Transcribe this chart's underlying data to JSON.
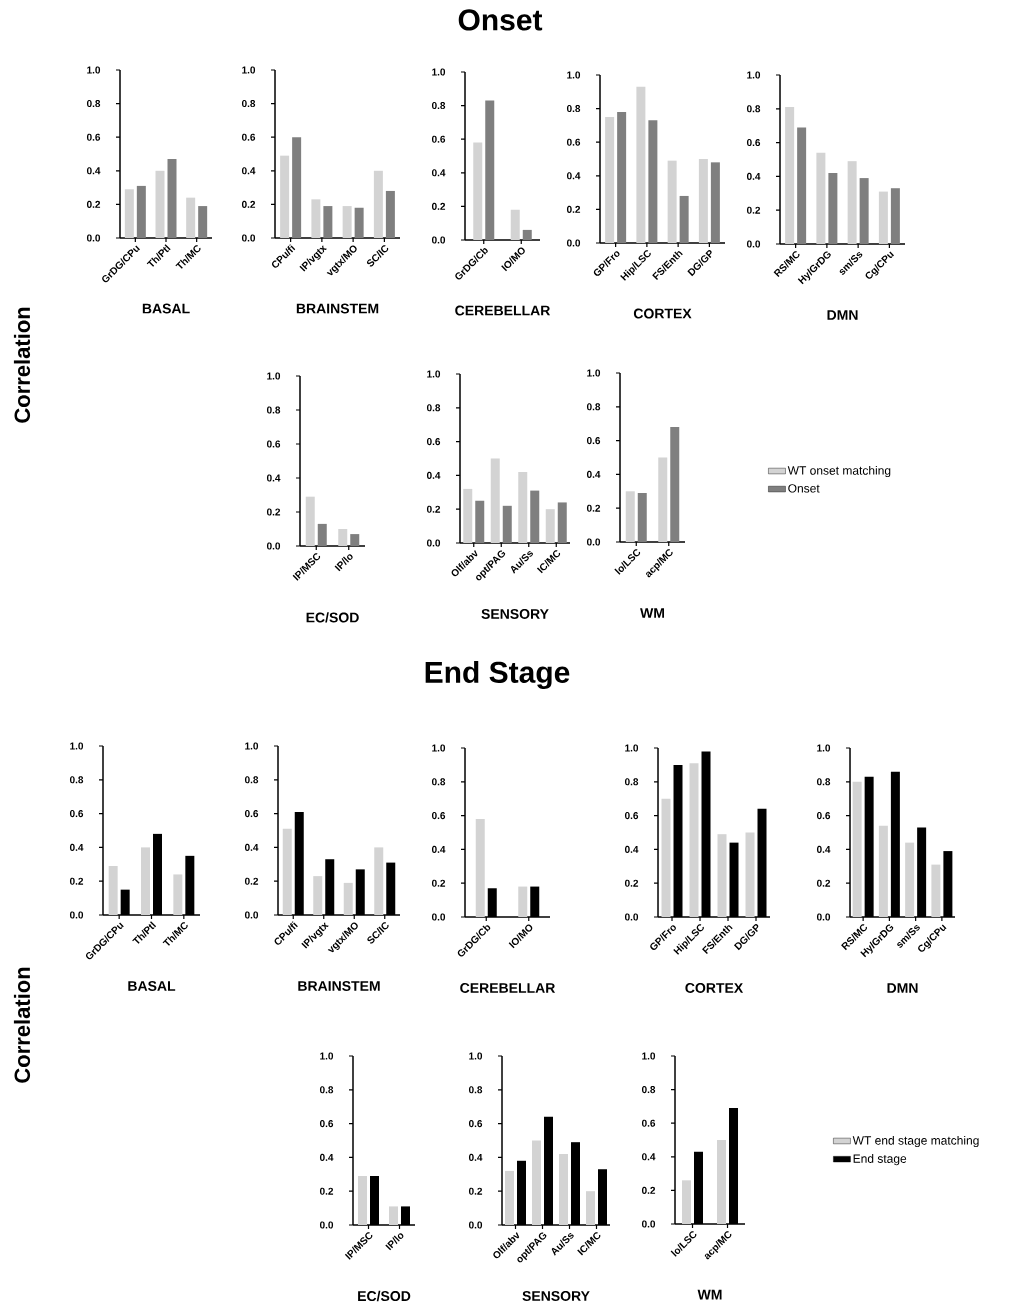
{
  "chart_data": [
    {
      "type": "other",
      "title": "Onset",
      "ylabel": "Correlation"
    },
    {
      "type": "bar",
      "xlabel": "BASAL",
      "categories": [
        "GrDG/CPu",
        "Th/Ptl",
        "Th/MC"
      ],
      "ylim": [
        0,
        1
      ],
      "yticks": [
        {
          "value": 0,
          "label": "0.0"
        },
        {
          "value": 0.2,
          "label": "0.2"
        },
        {
          "value": 0.4,
          "label": "0.4"
        },
        {
          "value": 0.6,
          "label": "0.6"
        },
        {
          "value": 0.8,
          "label": "0.8"
        },
        {
          "value": 1,
          "label": "1.0"
        }
      ],
      "series": [
        {
          "color": "#d3d3d3",
          "values": [
            0.29,
            0.4,
            0.24
          ]
        },
        {
          "color": "#7f7f7f",
          "values": [
            0.31,
            0.47,
            0.19
          ]
        }
      ]
    },
    {
      "type": "bar",
      "xlabel": "BRAINSTEM",
      "categories": [
        "CPu/fi",
        "IP/vgtx",
        "vgtx/MO",
        "SC/IC"
      ],
      "ylim": [
        0,
        1
      ],
      "yticks": [
        {
          "value": 0,
          "label": "0.0"
        },
        {
          "value": 0.2,
          "label": "0.2"
        },
        {
          "value": 0.4,
          "label": "0.4"
        },
        {
          "value": 0.6,
          "label": "0.6"
        },
        {
          "value": 0.8,
          "label": "0.8"
        },
        {
          "value": 1,
          "label": "1.0"
        }
      ],
      "series": [
        {
          "color": "#d3d3d3",
          "values": [
            0.49,
            0.23,
            0.19,
            0.4
          ]
        },
        {
          "color": "#7f7f7f",
          "values": [
            0.6,
            0.19,
            0.18,
            0.28
          ]
        }
      ]
    },
    {
      "type": "bar",
      "xlabel": "CEREBELLAR",
      "categories": [
        "GrDG/Cb",
        "IO/MO"
      ],
      "ylim": [
        0,
        1
      ],
      "yticks": [
        {
          "value": 0,
          "label": "0.0"
        },
        {
          "value": 0.2,
          "label": "0.2"
        },
        {
          "value": 0.4,
          "label": "0.4"
        },
        {
          "value": 0.6,
          "label": "0.6"
        },
        {
          "value": 0.8,
          "label": "0.8"
        },
        {
          "value": 1,
          "label": "1.0"
        }
      ],
      "series": [
        {
          "color": "#d3d3d3",
          "values": [
            0.58,
            0.18
          ]
        },
        {
          "color": "#7f7f7f",
          "values": [
            0.83,
            0.06
          ]
        }
      ]
    },
    {
      "type": "bar",
      "xlabel": "CORTEX",
      "categories": [
        "GP/Fro",
        "Hip/LSC",
        "FS/Enth",
        "DG/GP"
      ],
      "ylim": [
        0,
        1
      ],
      "yticks": [
        {
          "value": 0,
          "label": "0.0"
        },
        {
          "value": 0.2,
          "label": "0.2"
        },
        {
          "value": 0.4,
          "label": "0.4"
        },
        {
          "value": 0.6,
          "label": "0.6"
        },
        {
          "value": 0.8,
          "label": "0.8"
        },
        {
          "value": 1,
          "label": "1.0"
        }
      ],
      "series": [
        {
          "color": "#d3d3d3",
          "values": [
            0.75,
            0.93,
            0.49,
            0.5
          ]
        },
        {
          "color": "#7f7f7f",
          "values": [
            0.78,
            0.73,
            0.28,
            0.48
          ]
        }
      ]
    },
    {
      "type": "bar",
      "xlabel": "DMN",
      "categories": [
        "RS/MC",
        "Hy/GrDG",
        "sm/Ss",
        "Cg/CPu"
      ],
      "ylim": [
        0,
        1
      ],
      "yticks": [
        {
          "value": 0,
          "label": "0.0"
        },
        {
          "value": 0.2,
          "label": "0.2"
        },
        {
          "value": 0.4,
          "label": "0.4"
        },
        {
          "value": 0.6,
          "label": "0.6"
        },
        {
          "value": 0.8,
          "label": "0.8"
        },
        {
          "value": 1,
          "label": "1.0"
        }
      ],
      "series": [
        {
          "color": "#d3d3d3",
          "values": [
            0.81,
            0.54,
            0.49,
            0.31
          ]
        },
        {
          "color": "#7f7f7f",
          "values": [
            0.69,
            0.42,
            0.39,
            0.33
          ]
        }
      ]
    },
    {
      "type": "bar",
      "xlabel": "EC/SOD",
      "categories": [
        "IP/MSC",
        "IP/lo"
      ],
      "ylim": [
        0,
        1
      ],
      "yticks": [
        {
          "value": 0,
          "label": "0.0"
        },
        {
          "value": 0.2,
          "label": "0.2"
        },
        {
          "value": 0.4,
          "label": "0.4"
        },
        {
          "value": 0.6,
          "label": "0.6"
        },
        {
          "value": 0.8,
          "label": "0.8"
        },
        {
          "value": 1,
          "label": "1.0"
        }
      ],
      "series": [
        {
          "color": "#d3d3d3",
          "values": [
            0.29,
            0.1
          ]
        },
        {
          "color": "#7f7f7f",
          "values": [
            0.13,
            0.07
          ]
        }
      ]
    },
    {
      "type": "bar",
      "xlabel": "SENSORY",
      "categories": [
        "Olf/abv",
        "opt/PAG",
        "Au/Ss",
        "IC/MC"
      ],
      "ylim": [
        0,
        1
      ],
      "yticks": [
        {
          "value": 0,
          "label": "0.0"
        },
        {
          "value": 0.2,
          "label": "0.2"
        },
        {
          "value": 0.4,
          "label": "0.4"
        },
        {
          "value": 0.6,
          "label": "0.6"
        },
        {
          "value": 0.8,
          "label": "0.8"
        },
        {
          "value": 1,
          "label": "1.0"
        }
      ],
      "series": [
        {
          "color": "#d3d3d3",
          "values": [
            0.32,
            0.5,
            0.42,
            0.2
          ]
        },
        {
          "color": "#7f7f7f",
          "values": [
            0.25,
            0.22,
            0.31,
            0.24
          ]
        }
      ]
    },
    {
      "type": "bar",
      "xlabel": "WM",
      "categories": [
        "lo/LSC",
        "acp/MC"
      ],
      "ylim": [
        0,
        1
      ],
      "yticks": [
        {
          "value": 0,
          "label": "0.0"
        },
        {
          "value": 0.2,
          "label": "0.2"
        },
        {
          "value": 0.4,
          "label": "0.4"
        },
        {
          "value": 0.6,
          "label": "0.6"
        },
        {
          "value": 0.8,
          "label": "0.8"
        },
        {
          "value": 1,
          "label": "1.0"
        }
      ],
      "legend": "right",
      "series": [
        {
          "name": "WT onset matching",
          "color": "#d3d3d3",
          "values": [
            0.3,
            0.5
          ]
        },
        {
          "name": "Onset",
          "color": "#7f7f7f",
          "values": [
            0.29,
            0.68
          ]
        }
      ]
    },
    {
      "type": "other",
      "title": "End Stage",
      "ylabel": "Correlation"
    },
    {
      "type": "bar",
      "xlabel": "BASAL",
      "categories": [
        "GrDG/CPu",
        "Th/Ptl",
        "Th/MC"
      ],
      "ylim": [
        0,
        1
      ],
      "yticks": [
        {
          "value": 0,
          "label": "0.0"
        },
        {
          "value": 0.2,
          "label": "0.2"
        },
        {
          "value": 0.4,
          "label": "0.4"
        },
        {
          "value": 0.6,
          "label": "0.6"
        },
        {
          "value": 0.8,
          "label": "0.8"
        },
        {
          "value": 1,
          "label": "1.0"
        }
      ],
      "series": [
        {
          "color": "#d3d3d3",
          "values": [
            0.29,
            0.4,
            0.24
          ]
        },
        {
          "color": "#000000",
          "values": [
            0.15,
            0.48,
            0.35
          ]
        }
      ]
    },
    {
      "type": "bar",
      "xlabel": "BRAINSTEM",
      "categories": [
        "CPu/fi",
        "IP/vgtx",
        "vgtx/MO",
        "SC/IC"
      ],
      "ylim": [
        0,
        1
      ],
      "yticks": [
        {
          "value": 0,
          "label": "0.0"
        },
        {
          "value": 0.2,
          "label": "0.2"
        },
        {
          "value": 0.4,
          "label": "0.4"
        },
        {
          "value": 0.6,
          "label": "0.6"
        },
        {
          "value": 0.8,
          "label": "0.8"
        },
        {
          "value": 1,
          "label": "1.0"
        }
      ],
      "series": [
        {
          "color": "#d3d3d3",
          "values": [
            0.51,
            0.23,
            0.19,
            0.4
          ]
        },
        {
          "color": "#000000",
          "values": [
            0.61,
            0.33,
            0.27,
            0.31
          ]
        }
      ]
    },
    {
      "type": "bar",
      "xlabel": "CEREBELLAR",
      "categories": [
        "GrDG/Cb",
        "IO/MO"
      ],
      "ylim": [
        0,
        1
      ],
      "yticks": [
        {
          "value": 0,
          "label": "0.0"
        },
        {
          "value": 0.2,
          "label": "0.2"
        },
        {
          "value": 0.4,
          "label": "0.4"
        },
        {
          "value": 0.6,
          "label": "0.6"
        },
        {
          "value": 0.8,
          "label": "0.8"
        },
        {
          "value": 1,
          "label": "1.0"
        }
      ],
      "series": [
        {
          "color": "#d3d3d3",
          "values": [
            0.58,
            0.18
          ]
        },
        {
          "color": "#000000",
          "values": [
            0.17,
            0.18
          ]
        }
      ]
    },
    {
      "type": "bar",
      "xlabel": "CORTEX",
      "categories": [
        "GP/Fro",
        "Hip/LSC",
        "FS/Enth",
        "DG/GP"
      ],
      "ylim": [
        0,
        1
      ],
      "yticks": [
        {
          "value": 0,
          "label": "0.0"
        },
        {
          "value": 0.2,
          "label": "0.2"
        },
        {
          "value": 0.4,
          "label": "0.4"
        },
        {
          "value": 0.6,
          "label": "0.6"
        },
        {
          "value": 0.8,
          "label": "0.8"
        },
        {
          "value": 1,
          "label": "1.0"
        }
      ],
      "series": [
        {
          "color": "#d3d3d3",
          "values": [
            0.7,
            0.91,
            0.49,
            0.5
          ]
        },
        {
          "color": "#000000",
          "values": [
            0.9,
            0.98,
            0.44,
            0.64
          ]
        }
      ]
    },
    {
      "type": "bar",
      "xlabel": "DMN",
      "categories": [
        "RS/MC",
        "Hy/GrDG",
        "sm/Ss",
        "Cg/CPu"
      ],
      "ylim": [
        0,
        1
      ],
      "yticks": [
        {
          "value": 0,
          "label": "0.0"
        },
        {
          "value": 0.2,
          "label": "0.2"
        },
        {
          "value": 0.4,
          "label": "0.4"
        },
        {
          "value": 0.6,
          "label": "0.6"
        },
        {
          "value": 0.8,
          "label": "0.8"
        },
        {
          "value": 1,
          "label": "1.0"
        }
      ],
      "series": [
        {
          "color": "#d3d3d3",
          "values": [
            0.8,
            0.54,
            0.44,
            0.31
          ]
        },
        {
          "color": "#000000",
          "values": [
            0.83,
            0.86,
            0.53,
            0.39
          ]
        }
      ]
    },
    {
      "type": "bar",
      "xlabel": "EC/SOD",
      "categories": [
        "IP/MSC",
        "IP/lo"
      ],
      "ylim": [
        0,
        1
      ],
      "yticks": [
        {
          "value": 0,
          "label": "0.0"
        },
        {
          "value": 0.2,
          "label": "0.2"
        },
        {
          "value": 0.4,
          "label": "0.4"
        },
        {
          "value": 0.6,
          "label": "0.6"
        },
        {
          "value": 0.8,
          "label": "0.8"
        },
        {
          "value": 1,
          "label": "1.0"
        }
      ],
      "series": [
        {
          "color": "#d3d3d3",
          "values": [
            0.29,
            0.11
          ]
        },
        {
          "color": "#000000",
          "values": [
            0.29,
            0.11
          ]
        }
      ]
    },
    {
      "type": "bar",
      "xlabel": "SENSORY",
      "categories": [
        "Olf/abv",
        "opt/PAG",
        "Au/Ss",
        "IC/MC"
      ],
      "ylim": [
        0,
        1
      ],
      "yticks": [
        {
          "value": 0,
          "label": "0.0"
        },
        {
          "value": 0.2,
          "label": "0.2"
        },
        {
          "value": 0.4,
          "label": "0.4"
        },
        {
          "value": 0.6,
          "label": "0.6"
        },
        {
          "value": 0.8,
          "label": "0.8"
        },
        {
          "value": 1,
          "label": "1.0"
        }
      ],
      "series": [
        {
          "color": "#d3d3d3",
          "values": [
            0.32,
            0.5,
            0.42,
            0.2
          ]
        },
        {
          "color": "#000000",
          "values": [
            0.38,
            0.64,
            0.49,
            0.33
          ]
        }
      ]
    },
    {
      "type": "bar",
      "xlabel": "WM",
      "categories": [
        "lo/LSC",
        "acp/MC"
      ],
      "ylim": [
        0,
        1
      ],
      "yticks": [
        {
          "value": 0,
          "label": "0.0"
        },
        {
          "value": 0.2,
          "label": "0.2"
        },
        {
          "value": 0.4,
          "label": "0.4"
        },
        {
          "value": 0.6,
          "label": "0.6"
        },
        {
          "value": 0.8,
          "label": "0.8"
        },
        {
          "value": 1,
          "label": "1.0"
        }
      ],
      "legend": "right",
      "series": [
        {
          "name": "WT end stage matching",
          "color": "#d3d3d3",
          "values": [
            0.26,
            0.5
          ]
        },
        {
          "name": "End stage",
          "color": "#000000",
          "values": [
            0.43,
            0.69
          ]
        }
      ]
    }
  ]
}
